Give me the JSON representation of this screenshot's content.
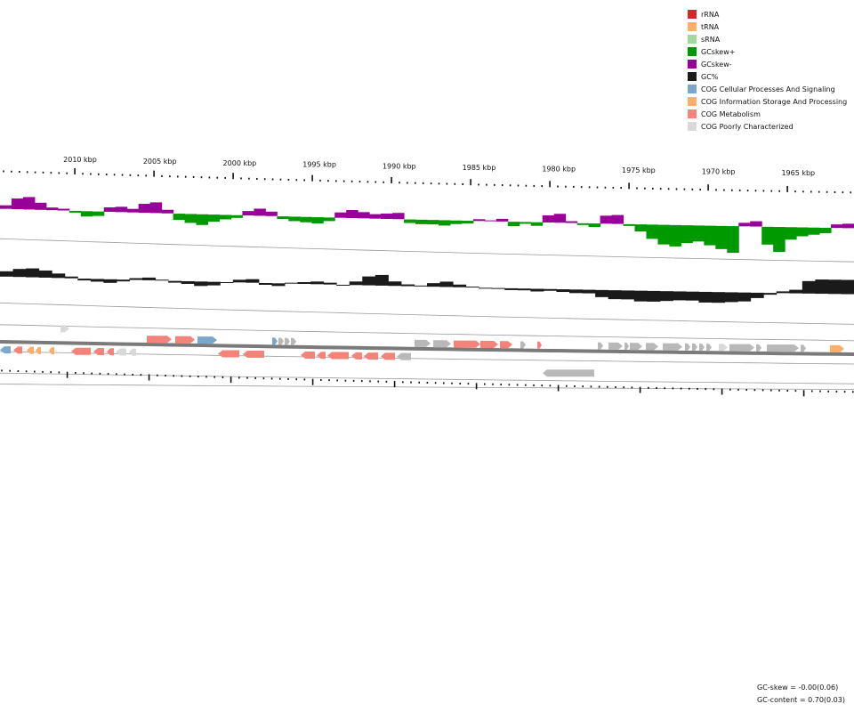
{
  "legend": [
    {
      "label": "rRNA",
      "color": "#d62728"
    },
    {
      "label": "tRNA",
      "color": "#fdae6b"
    },
    {
      "label": "sRNA",
      "color": "#a1d99b"
    },
    {
      "label": "GCskew+",
      "color": "#009900"
    },
    {
      "label": "GCskew-",
      "color": "#990099"
    },
    {
      "label": "GC%",
      "color": "#1a1a1a"
    },
    {
      "label": "COG Cellular Processes And Signaling",
      "color": "#7ba7cc"
    },
    {
      "label": "COG Information Storage And Processing",
      "color": "#fdae6b"
    },
    {
      "label": "COG Metabolism",
      "color": "#f4837a"
    },
    {
      "label": "COG Poorly Characterized",
      "color": "#d9d9d9"
    }
  ],
  "ruler": {
    "labels": [
      "2010 kbp",
      "2005 kbp",
      "2000 kbp",
      "1995 kbp",
      "1990 kbp",
      "1985 kbp",
      "1980 kbp",
      "1975 kbp",
      "1970 kbp",
      "1965 kbp"
    ]
  },
  "stats": {
    "gc_skew": "GC-skew = -0.00(0.06)",
    "gc_content": "GC-content = 0.70(0.03)"
  },
  "colors": {
    "skew_pos": "#009900",
    "skew_neg": "#990099",
    "gc": "#1a1a1a",
    "cog_cell": "#7ba7cc",
    "cog_info": "#fdae6b",
    "cog_metab": "#f4837a",
    "cog_poor": "#d9d9d9",
    "other": "#b8b8b8"
  }
}
